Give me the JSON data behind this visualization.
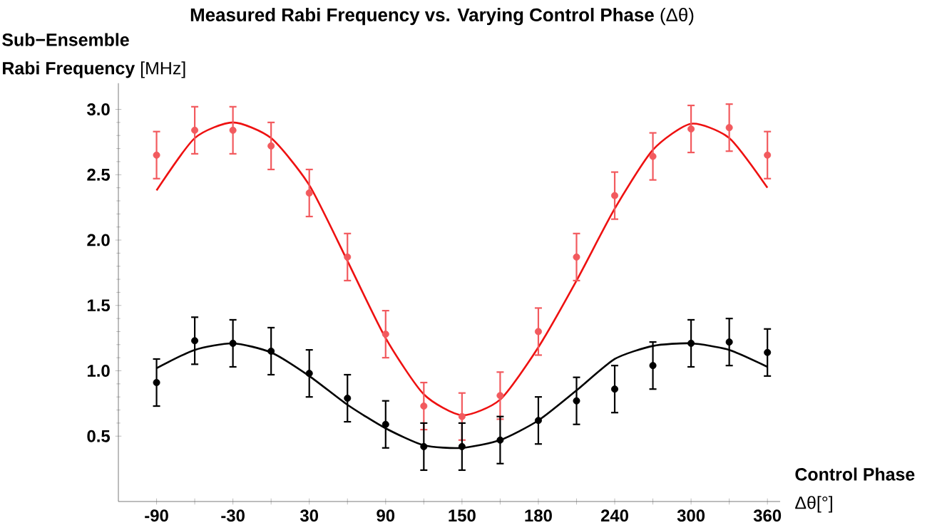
{
  "chart_data": {
    "type": "scatter",
    "title": "**Measured Rabi Frequency vs. Varying Control Phase** (Δθ)",
    "xlabel": "**Control Phase** Δθ[°]",
    "ylabel": "**Sub−Ensemble Rabi Frequency** [MHz]",
    "categories": [
      "-90",
      null,
      "-30",
      null,
      "30",
      null,
      "90",
      null,
      "150",
      null,
      "180",
      null,
      "240",
      null,
      "300",
      null,
      "360"
    ],
    "ylim": [
      0,
      3.2
    ],
    "yticks": [
      0.5,
      {
        "value": 1,
        "label": "1.0"
      },
      1.5,
      {
        "value": 2,
        "label": "2.0"
      },
      2.5,
      {
        "value": 3,
        "label": "3.0"
      }
    ],
    "grid": false,
    "series": [
      {
        "type": "line",
        "color": "#ee1111",
        "marker": "none",
        "values": [
          2.38,
          2.78,
          2.9,
          2.78,
          2.42,
          1.84,
          1.25,
          0.82,
          0.66,
          0.78,
          1.18,
          1.69,
          2.24,
          2.69,
          2.89,
          2.78,
          2.4
        ]
      },
      {
        "type": "line",
        "color": "#000000",
        "marker": "none",
        "values": [
          1.02,
          1.16,
          1.21,
          1.14,
          0.96,
          0.74,
          0.56,
          0.43,
          0.41,
          0.47,
          0.62,
          0.85,
          1.09,
          1.19,
          1.21,
          1.16,
          1.03
        ]
      },
      {
        "type": "scatter",
        "color": "#f25a5e",
        "marker": "circle",
        "values": [
          2.65,
          2.84,
          2.84,
          2.72,
          2.36,
          1.87,
          1.28,
          0.73,
          0.65,
          0.81,
          1.3,
          1.87,
          2.34,
          2.64,
          2.85,
          2.86,
          2.65
        ],
        "errors": [
          0.18,
          0.18,
          0.18,
          0.18,
          0.18,
          0.18,
          0.18,
          0.18,
          0.18,
          0.18,
          0.18,
          0.18,
          0.18,
          0.18,
          0.18,
          0.18,
          0.18
        ]
      },
      {
        "type": "scatter",
        "color": "#000000",
        "marker": "circle",
        "values": [
          0.91,
          1.23,
          1.21,
          1.15,
          0.98,
          0.79,
          0.59,
          0.42,
          0.42,
          0.47,
          0.62,
          0.77,
          0.86,
          1.04,
          1.21,
          1.22,
          1.14
        ],
        "errors": [
          0.18,
          0.18,
          0.18,
          0.18,
          0.18,
          0.18,
          0.18,
          0.18,
          0.18,
          0.18,
          0.18,
          0.18,
          0.18,
          0.18,
          0.18,
          0.18,
          0.18
        ]
      }
    ]
  }
}
